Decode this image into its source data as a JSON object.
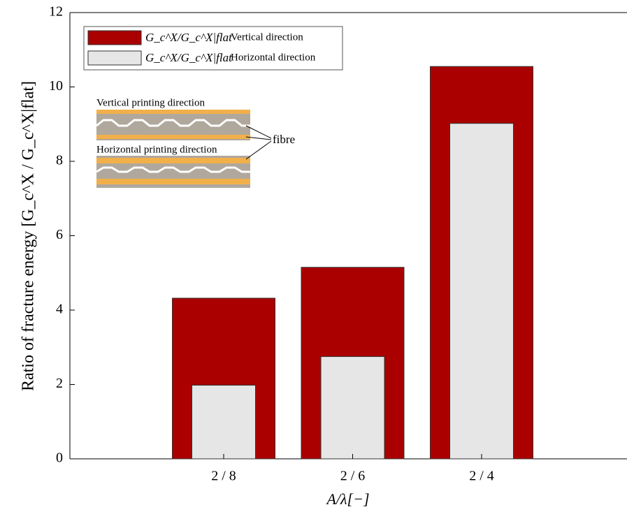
{
  "chart_data": {
    "type": "bar",
    "x_label": "A/λ[−]",
    "y_label": "Ratio of fracture energy [G_c^X / G_c^X|flat]",
    "categories": [
      "2 / 8",
      "2 / 6",
      "2 / 4"
    ],
    "series": [
      {
        "name": "Vertical direction",
        "color": "#aa0000",
        "values": [
          4.32,
          5.15,
          10.55
        ]
      },
      {
        "name": "Horizontal direction",
        "color": "#e6e6e6",
        "values": [
          1.98,
          2.75,
          9.02
        ]
      }
    ],
    "legend_formula": "G_c^X/G_c^X|flat",
    "legend_position": "upper left",
    "annotations": [
      "Vertical printing direction",
      "Horizontal printing direction",
      "fibre"
    ],
    "ylim": [
      0,
      12
    ],
    "yticks": [
      0,
      2,
      4,
      6,
      8,
      10,
      12
    ]
  }
}
